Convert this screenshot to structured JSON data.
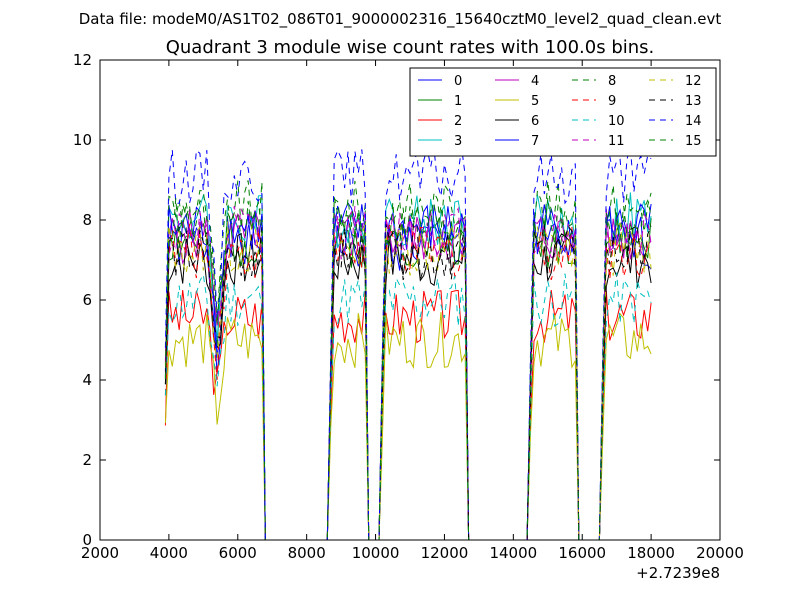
{
  "figure": {
    "suptitle": "Data file: modeM0/AS1T02_086T01_9000002316_15640cztM0_level2_quad_clean.evt"
  },
  "chart_data": {
    "type": "line",
    "title": "Quadrant 3 module wise count rates with 100.0s bins.",
    "xlabel": "",
    "ylabel": "",
    "x_offset_label": "+2.7239e8",
    "xlim": [
      2000,
      20000
    ],
    "ylim": [
      0,
      12
    ],
    "x_ticks": [
      2000,
      4000,
      6000,
      8000,
      10000,
      12000,
      14000,
      16000,
      18000,
      20000
    ],
    "x_tick_labels": [
      "2000",
      "4000",
      "6000",
      "8000",
      "10000",
      "12000",
      "14000",
      "16000",
      "18000",
      "20000"
    ],
    "y_ticks": [
      0,
      2,
      4,
      6,
      8,
      10,
      12
    ],
    "y_tick_labels": [
      "0",
      "2",
      "4",
      "6",
      "8",
      "10",
      "12"
    ],
    "grid": false,
    "legend_position": "top-right",
    "legend_columns": 4,
    "x_start": 3900,
    "x_end": 18000,
    "bin_size": 100,
    "segments": [
      {
        "start": 3900,
        "end": 6700,
        "dip_at": 5400,
        "dip_depth": 2.6
      },
      {
        "start": 8700,
        "end": 9700
      },
      {
        "start": 10200,
        "end": 12600
      },
      {
        "start": 14500,
        "end": 15800
      },
      {
        "start": 16600,
        "end": 18000
      }
    ],
    "series": [
      {
        "name": "0",
        "color": "#0000ff",
        "dash": "solid",
        "base": 7.4
      },
      {
        "name": "1",
        "color": "#008000",
        "dash": "solid",
        "base": 7.5
      },
      {
        "name": "2",
        "color": "#ff0000",
        "dash": "solid",
        "base": 5.6
      },
      {
        "name": "3",
        "color": "#00bfbf",
        "dash": "solid",
        "base": 8.0
      },
      {
        "name": "4",
        "color": "#bf00bf",
        "dash": "solid",
        "base": 7.6
      },
      {
        "name": "5",
        "color": "#bfbf00",
        "dash": "solid",
        "base": 5.0
      },
      {
        "name": "6",
        "color": "#000000",
        "dash": "solid",
        "base": 7.0
      },
      {
        "name": "7",
        "color": "#0000ff",
        "dash": "solid",
        "base": 7.8
      },
      {
        "name": "8",
        "color": "#008000",
        "dash": "dashed",
        "base": 8.3
      },
      {
        "name": "9",
        "color": "#ff0000",
        "dash": "dashed",
        "base": 7.2
      },
      {
        "name": "10",
        "color": "#00bfbf",
        "dash": "dashed",
        "base": 6.0
      },
      {
        "name": "11",
        "color": "#bf00bf",
        "dash": "dashed",
        "base": 7.7
      },
      {
        "name": "12",
        "color": "#bfbf00",
        "dash": "dashed",
        "base": 7.3
      },
      {
        "name": "13",
        "color": "#000000",
        "dash": "dashed",
        "base": 7.2
      },
      {
        "name": "14",
        "color": "#0000ff",
        "dash": "dashed",
        "base": 9.1
      },
      {
        "name": "15",
        "color": "#008000",
        "dash": "dashed",
        "base": 7.9
      }
    ]
  }
}
